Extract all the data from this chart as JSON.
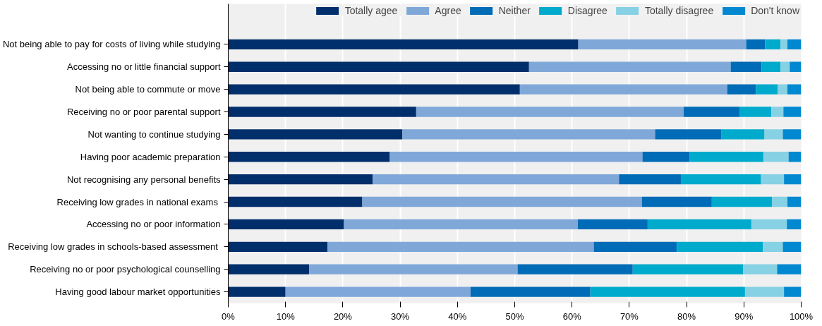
{
  "chart_data": {
    "type": "bar",
    "orientation": "horizontal",
    "stacked": true,
    "legend": "top",
    "grid": "x",
    "categories": [
      "Not being able to pay for costs of living while studying",
      "Accessing no or little financial support",
      "Not being able to commute or move",
      "Receiving no or poor parental support",
      "Not wanting to continue studying",
      "Having poor academic preparation",
      "Not recognising any personal benefits",
      "Receiving low grades in national exams ",
      "Accessing no or poor information",
      "Receiving low grades in schools-based assessment ",
      "Receiving no or poor psychological counselling",
      "Having good labour market opportunities"
    ],
    "series": [
      {
        "name": "Totally agee",
        "color": "#002f6c",
        "values": [
          61.1,
          52.5,
          50.9,
          32.8,
          30.4,
          28.2,
          25.2,
          23.4,
          20.2,
          17.3,
          14.1,
          10.0
        ]
      },
      {
        "name": "Agree",
        "color": "#7fa8d9",
        "values": [
          29.3,
          35.2,
          36.2,
          46.7,
          44.1,
          44.1,
          43.0,
          48.8,
          40.8,
          46.5,
          36.4,
          32.3
        ]
      },
      {
        "name": "Neither",
        "color": "#006bb6",
        "values": [
          3.3,
          5.4,
          5.0,
          9.8,
          11.6,
          8.2,
          10.8,
          12.2,
          12.2,
          14.5,
          20.1,
          20.9
        ]
      },
      {
        "name": "Disagree",
        "color": "#00aacc",
        "values": [
          2.7,
          3.3,
          3.8,
          5.5,
          7.5,
          12.9,
          14.0,
          10.5,
          18.1,
          15.0,
          19.3,
          27.0
        ]
      },
      {
        "name": "Totally disagree",
        "color": "#86d1e4",
        "values": [
          1.2,
          1.6,
          1.7,
          2.1,
          3.2,
          4.4,
          4.0,
          2.7,
          6.2,
          3.5,
          5.9,
          6.8
        ]
      },
      {
        "name": "Don't know",
        "color": "#0088d0",
        "values": [
          2.4,
          2.0,
          2.4,
          3.1,
          3.2,
          2.2,
          3.0,
          2.4,
          2.5,
          3.2,
          4.2,
          3.0
        ]
      }
    ],
    "xlim": [
      0,
      100
    ],
    "xticks": [
      {
        "value": 0,
        "label": "0%"
      },
      {
        "value": 10,
        "label": "10%"
      },
      {
        "value": 20,
        "label": "20%"
      },
      {
        "value": 30,
        "label": "30%"
      },
      {
        "value": 40,
        "label": "40%"
      },
      {
        "value": 50,
        "label": "50%"
      },
      {
        "value": 60,
        "label": "60%"
      },
      {
        "value": 70,
        "label": "70%"
      },
      {
        "value": 80,
        "label": "80%"
      },
      {
        "value": 90,
        "label": "90%"
      },
      {
        "value": 100,
        "label": "100%"
      }
    ]
  }
}
